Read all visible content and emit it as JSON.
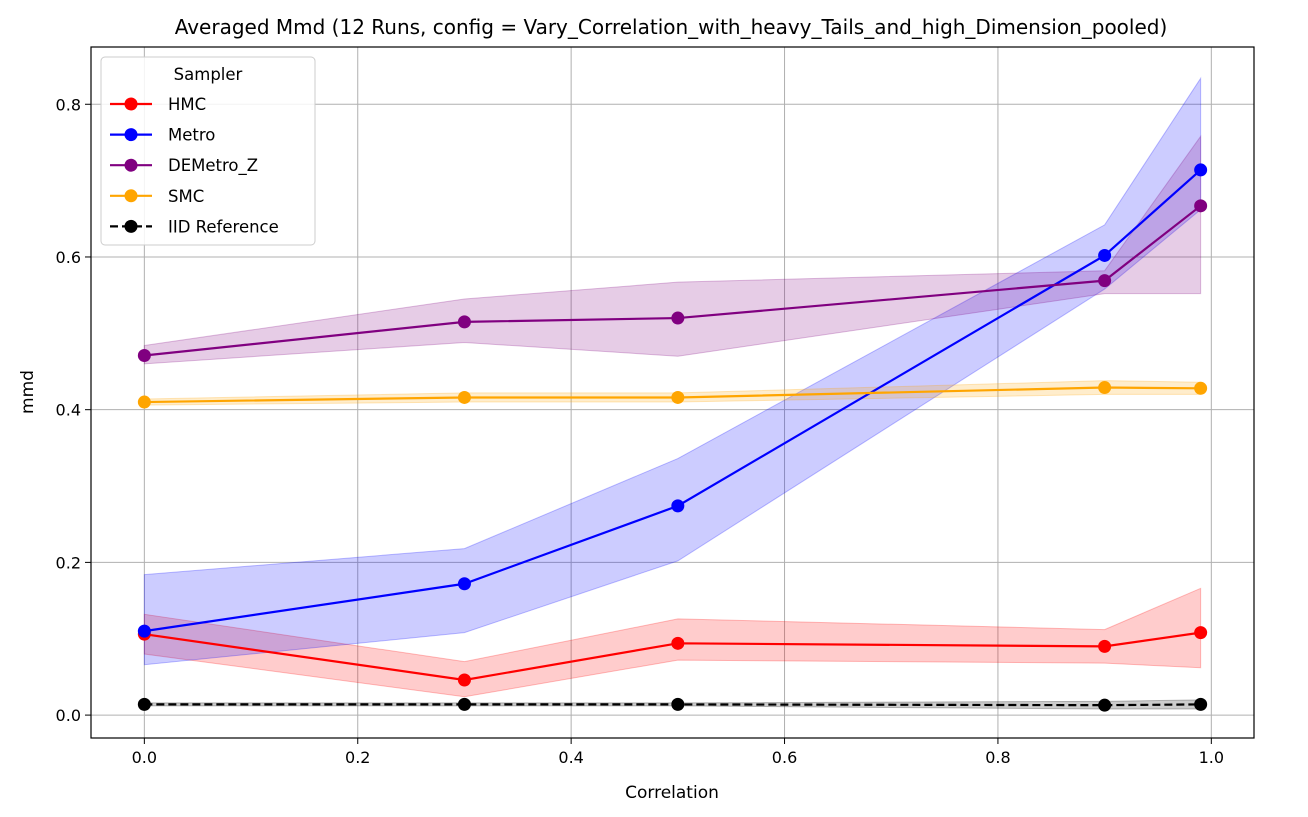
{
  "chart_data": {
    "type": "line",
    "title": "Averaged Mmd (12 Runs, config = Vary_Correlation_with_heavy_Tails_and_high_Dimension_pooled)",
    "xlabel": "Correlation",
    "ylabel": "mmd",
    "xlim": [
      -0.05,
      1.04
    ],
    "ylim": [
      -0.03,
      0.875
    ],
    "x_ticks": [
      0.0,
      0.2,
      0.4,
      0.6,
      0.8,
      1.0
    ],
    "x_tick_labels": [
      "0.0",
      "0.2",
      "0.4",
      "0.6",
      "0.8",
      "1.0"
    ],
    "y_ticks": [
      0.0,
      0.2,
      0.4,
      0.6,
      0.8
    ],
    "y_tick_labels": [
      "0.0",
      "0.2",
      "0.4",
      "0.6",
      "0.8"
    ],
    "grid": true,
    "legend": {
      "title": "Sampler",
      "placement": "top-left"
    },
    "x": [
      0.0,
      0.3,
      0.5,
      0.9,
      0.99
    ],
    "series": [
      {
        "name": "HMC",
        "color": "#ff0000",
        "dashed": false,
        "values": [
          0.106,
          0.046,
          0.094,
          0.09,
          0.108
        ],
        "band_low": [
          0.08,
          0.024,
          0.072,
          0.068,
          0.062
        ],
        "band_high": [
          0.132,
          0.07,
          0.126,
          0.112,
          0.166
        ]
      },
      {
        "name": "Metro",
        "color": "#0000ff",
        "dashed": false,
        "values": [
          0.11,
          0.172,
          0.274,
          0.602,
          0.714
        ],
        "band_low": [
          0.066,
          0.108,
          0.202,
          0.558,
          0.662
        ],
        "band_high": [
          0.184,
          0.218,
          0.336,
          0.642,
          0.834
        ]
      },
      {
        "name": "DEMetro_Z",
        "color": "#800080",
        "dashed": false,
        "values": [
          0.471,
          0.515,
          0.52,
          0.569,
          0.667
        ],
        "band_low": [
          0.46,
          0.488,
          0.47,
          0.552,
          0.552
        ],
        "band_high": [
          0.484,
          0.545,
          0.567,
          0.582,
          0.758
        ]
      },
      {
        "name": "SMC",
        "color": "#ffa500",
        "dashed": false,
        "values": [
          0.41,
          0.416,
          0.416,
          0.429,
          0.428
        ],
        "band_low": [
          0.406,
          0.41,
          0.41,
          0.42,
          0.42
        ],
        "band_high": [
          0.414,
          0.422,
          0.422,
          0.438,
          0.436
        ]
      },
      {
        "name": "IID Reference",
        "color": "#000000",
        "dashed": true,
        "values": [
          0.014,
          0.014,
          0.014,
          0.013,
          0.014
        ],
        "band_low": [
          0.012,
          0.012,
          0.012,
          0.008,
          0.008
        ],
        "band_high": [
          0.016,
          0.016,
          0.016,
          0.018,
          0.02
        ]
      }
    ]
  }
}
